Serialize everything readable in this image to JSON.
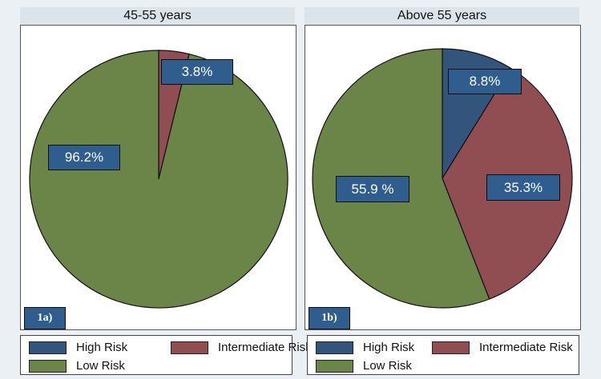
{
  "chart_data": [
    {
      "type": "pie",
      "panel_tag": "1a)",
      "title": "45-55 years",
      "slices": [
        {
          "name": "High Risk",
          "value": 0.0,
          "label": ""
        },
        {
          "name": "Intermediate Risk",
          "value": 3.8,
          "label": "3.8%"
        },
        {
          "name": "Low Risk",
          "value": 96.2,
          "label": "96.2%"
        }
      ],
      "legend": [
        "High Risk",
        "Intermediate Risk",
        "Low Risk"
      ]
    },
    {
      "type": "pie",
      "panel_tag": "1b)",
      "title": "Above 55 years",
      "slices": [
        {
          "name": "High Risk",
          "value": 8.8,
          "label": "8.8%"
        },
        {
          "name": "Intermediate Risk",
          "value": 35.3,
          "label": "35.3%"
        },
        {
          "name": "Low Risk",
          "value": 55.9,
          "label": "55.9 %"
        }
      ],
      "legend": [
        "High Risk",
        "Intermediate Risk",
        "Low Risk"
      ]
    }
  ],
  "colors": {
    "High Risk": "#34557b",
    "Intermediate Risk": "#904d52",
    "Low Risk": "#6b8549",
    "label_box": "#2e5d8e"
  }
}
